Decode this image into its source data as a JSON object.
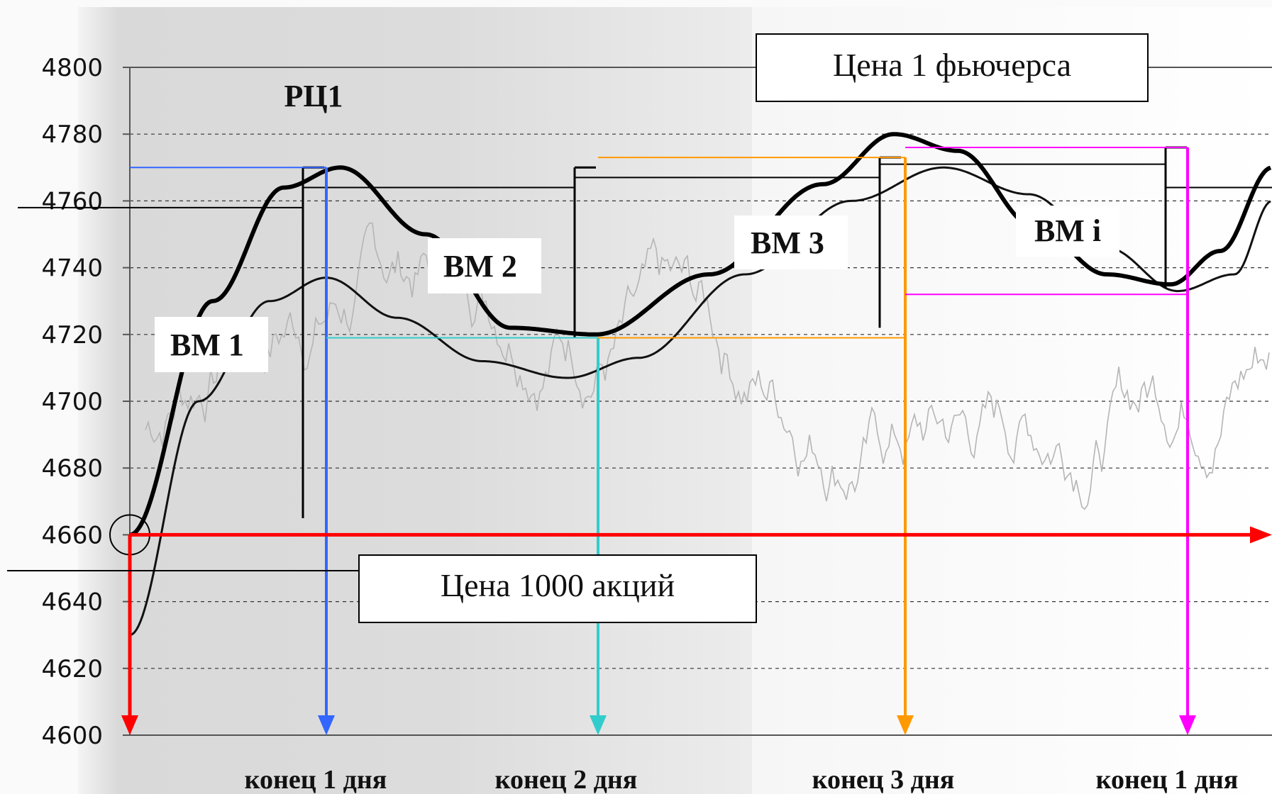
{
  "chart_data": {
    "type": "line",
    "ylim": [
      4600,
      4800
    ],
    "y_ticks": [
      4600,
      4620,
      4640,
      4660,
      4680,
      4700,
      4720,
      4740,
      4760,
      4780,
      4800
    ],
    "grid": "dashed horizontal",
    "x_labels": [
      "конец 1 дня",
      "конец 2 дня",
      "конец 3 дня",
      "конец 1 дня"
    ],
    "annotations": {
      "rc1": "РЦ1",
      "futures_price": "Цена 1 фьючерса",
      "stock_price": "Цена 1000 акций",
      "vm1": "ВМ 1",
      "vm2": "ВМ 2",
      "vm3": "ВМ 3",
      "vmi": "ВМ i"
    },
    "entry_price": 4660,
    "day_markers": [
      {
        "label": "конец 1 дня",
        "color": "#3366ff",
        "price": 4770
      },
      {
        "label": "конец 2 дня",
        "color": "#33cccc",
        "price": 4719
      },
      {
        "label": "конец 3 дня",
        "color": "#ff9900",
        "price": 4773
      },
      {
        "label": "конец 1 дня",
        "color": "#ff00ff",
        "price": 4776
      }
    ],
    "colors": {
      "entry": "#ff0000",
      "day1": "#3366ff",
      "day2": "#33cccc",
      "day3": "#ff9900",
      "dayi": "#ff00ff"
    }
  }
}
